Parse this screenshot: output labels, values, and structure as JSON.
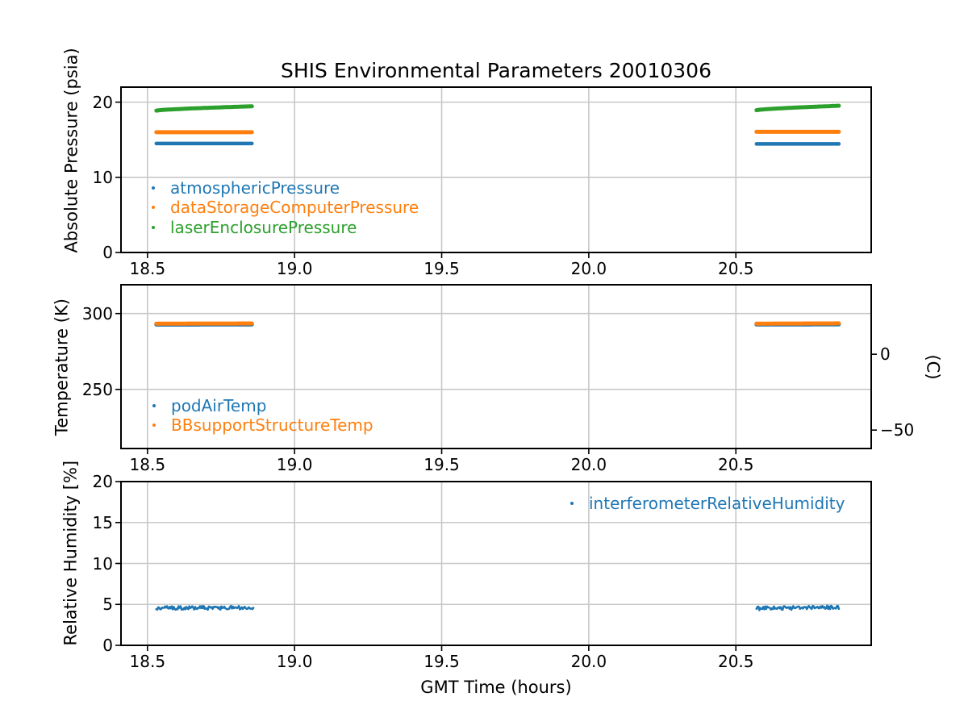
{
  "figure": {
    "title": "SHIS Environmental Parameters 20010306",
    "xlabel": "GMT Time (hours)",
    "background": "#ffffff",
    "grid_color": "#c8c8c8",
    "spine_color": "#000000",
    "text_color": "#000000"
  },
  "xaxis": {
    "lim": [
      18.41,
      20.96
    ],
    "ticks": [
      18.5,
      19.0,
      19.5,
      20.0,
      20.5
    ],
    "tick_labels": [
      "18.5",
      "19.0",
      "19.5",
      "20.0",
      "20.5"
    ],
    "label": "GMT Time (hours)"
  },
  "chart_data": [
    {
      "type": "scatter",
      "ylabel": "Absolute Pressure (psia)",
      "ylim": [
        0,
        22
      ],
      "yticks": [
        0,
        10,
        20
      ],
      "ytick_labels": [
        "0",
        "10",
        "20"
      ],
      "grid": true,
      "legend_loc": "lower left",
      "segments_x": [
        [
          18.53,
          18.855
        ],
        [
          20.57,
          20.85
        ]
      ],
      "series": [
        {
          "name": "atmosphericPressure",
          "color": "#1f77b4",
          "seg_values": [
            [
              14.5,
              14.5
            ],
            [
              14.45,
              14.45
            ]
          ],
          "width": 4.5
        },
        {
          "name": "dataStorageComputerPressure",
          "color": "#ff7f0e",
          "seg_values": [
            [
              16.0,
              16.0
            ],
            [
              16.05,
              16.05
            ]
          ],
          "width": 5
        },
        {
          "name": "laserEnclosurePressure",
          "color": "#2ca02c",
          "seg_values": [
            [
              18.88,
              19.45
            ],
            [
              18.93,
              19.52
            ]
          ],
          "width": 5,
          "curve": 0.7
        }
      ]
    },
    {
      "type": "scatter",
      "ylabel": "Temperature (K)",
      "ylim": [
        211,
        319
      ],
      "yticks": [
        250,
        300
      ],
      "ytick_labels": [
        "250",
        "300"
      ],
      "grid": true,
      "legend_loc": "lower left",
      "right_axis": {
        "label": "(C)",
        "ticks": [
          0,
          -50
        ],
        "tick_labels": [
          "0",
          "−50"
        ],
        "kelvin_offset": 273.15
      },
      "segments_x": [
        [
          18.53,
          18.855
        ],
        [
          20.57,
          20.85
        ]
      ],
      "series": [
        {
          "name": "podAirTemp",
          "color": "#1f77b4",
          "seg_values": [
            [
              292.7,
              292.8
            ],
            [
              292.75,
              292.9
            ]
          ],
          "width": 5
        },
        {
          "name": "BBsupportStructureTemp",
          "color": "#ff7f0e",
          "seg_values": [
            [
              293.35,
              293.45
            ],
            [
              293.35,
              293.5
            ]
          ],
          "width": 5
        }
      ]
    },
    {
      "type": "scatter",
      "ylabel": "Relative Humidity [%]",
      "ylim": [
        0,
        20
      ],
      "yticks": [
        0,
        5,
        10,
        15,
        20
      ],
      "ytick_labels": [
        "0",
        "5",
        "10",
        "15",
        "20"
      ],
      "grid": true,
      "legend_loc": "upper right",
      "segments_x": [
        [
          18.53,
          18.86
        ],
        [
          20.57,
          20.85
        ]
      ],
      "series": [
        {
          "name": "interferometerRelativeHumidity",
          "color": "#1f77b4",
          "seg_values": [
            [
              4.55,
              4.6
            ],
            [
              4.5,
              4.65
            ]
          ],
          "width": 2.6,
          "noise": 0.23
        }
      ]
    }
  ]
}
